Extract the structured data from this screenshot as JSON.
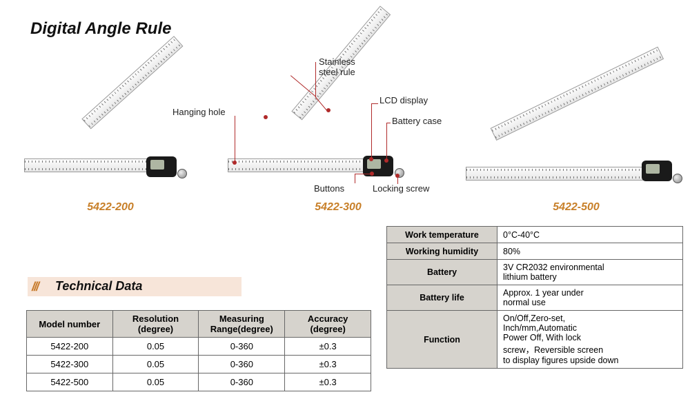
{
  "title": "Digital Angle Rule",
  "colors": {
    "model_label": "#c8802a",
    "header_bg": "#f7e5d9",
    "table_header_bg": "#d6d3cd",
    "border": "#666666",
    "callout_line": "#b02a2a",
    "text": "#111111"
  },
  "products": [
    {
      "model": "5422-200"
    },
    {
      "model": "5422-300"
    },
    {
      "model": "5422-500"
    }
  ],
  "callouts": {
    "hanging_hole": "Hanging hole",
    "stainless_steel_rule": "Stainless\nsteel rule",
    "lcd_display": "LCD display",
    "battery_case": "Battery case",
    "buttons": "Buttons",
    "locking_screw": "Locking screw"
  },
  "tech_header": "Technical Data",
  "left_table": {
    "columns": [
      "Model  number",
      "Resolution\n(degree)",
      "Measuring\nRange(degree)",
      "Accuracy\n(degree)"
    ],
    "rows": [
      [
        "5422-200",
        "0.05",
        "0-360",
        "±0.3"
      ],
      [
        "5422-300",
        "0.05",
        "0-360",
        "±0.3"
      ],
      [
        "5422-500",
        "0.05",
        "0-360",
        "±0.3"
      ]
    ]
  },
  "right_table": {
    "rows": [
      [
        "Work temperature",
        "0°C-40°C"
      ],
      [
        "Working humidity",
        "80%"
      ],
      [
        "Battery",
        "3V CR2032 environmental\n  lithium battery"
      ],
      [
        "Battery life",
        "Approx. 1 year under\nnormal use"
      ],
      [
        "Function",
        "On/Off,Zero-set,\nInch/mm,Automatic\nPower Off, With lock\nscrew，Reversible screen\nto display  figures upside down"
      ]
    ]
  }
}
